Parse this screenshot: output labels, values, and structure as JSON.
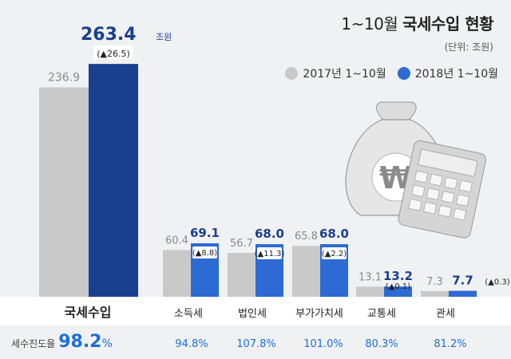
{
  "title": {
    "range": "1~10월",
    "main": "국세수입 현황"
  },
  "unit_label": "(단위: 조원)",
  "legend": [
    {
      "label": "2017년 1~10월",
      "color": "#c9c9c9"
    },
    {
      "label": "2018년 1~10월",
      "color": "#2d6ad4"
    }
  ],
  "progress_label": "세수진도율",
  "chart_data": {
    "type": "bar",
    "categories": [
      "국세수입",
      "소득세",
      "법인세",
      "부가가치세",
      "교통세",
      "관세"
    ],
    "series": [
      {
        "name": "2017년 1~10월",
        "values": [
          236.9,
          60.4,
          56.7,
          65.8,
          13.1,
          7.3
        ]
      },
      {
        "name": "2018년 1~10월",
        "values": [
          263.4,
          69.1,
          68.0,
          68.0,
          13.2,
          7.7
        ]
      }
    ],
    "changes": [
      "▲26.5",
      "▲8.8",
      "▲11.3",
      "▲2.2",
      "▲0.1",
      "▲0.3"
    ],
    "total_value_unit": "조원",
    "progress_rates": [
      "98.2",
      "94.8",
      "107.8",
      "101.0",
      "80.3",
      "81.2"
    ],
    "progress_unit": "%",
    "colors": {
      "y2017": "#c9c9c9",
      "y2018_total": "#1a3f8f",
      "y2018": "#2d6ad4",
      "value2018": "#1a3f8f",
      "rate": "#1c6fd4",
      "change_mark": "#e03030"
    }
  }
}
